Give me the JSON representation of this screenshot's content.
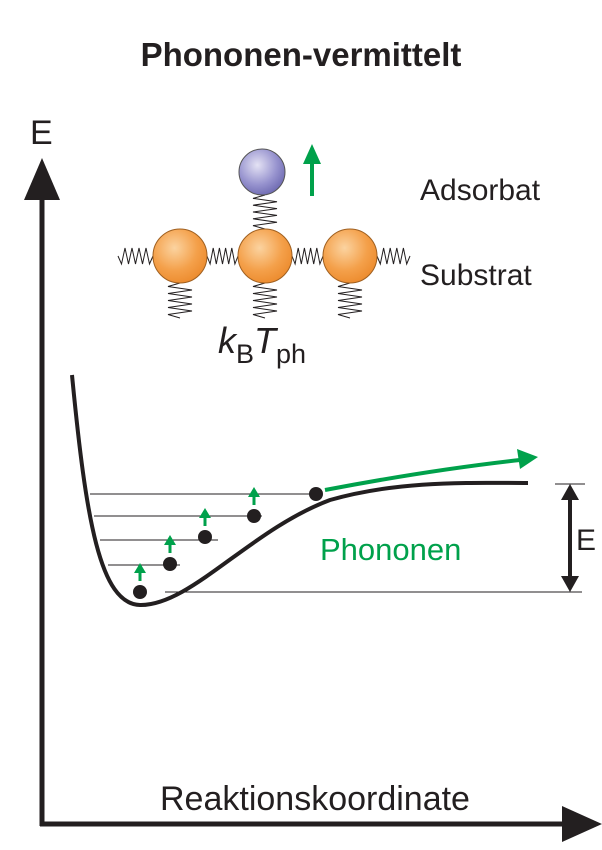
{
  "header": {
    "title": "Phononen-vermittelt"
  },
  "axes": {
    "y_label": "E",
    "x_label": "Reaktionskoordinate"
  },
  "labels": {
    "adsorbate": "Adsorbat",
    "substrate": "Substrat",
    "phonons": "Phononen",
    "energy": "E",
    "thermal": {
      "k": "k",
      "k_sub": "B",
      "t": "T",
      "t_sub": "ph"
    }
  }
}
